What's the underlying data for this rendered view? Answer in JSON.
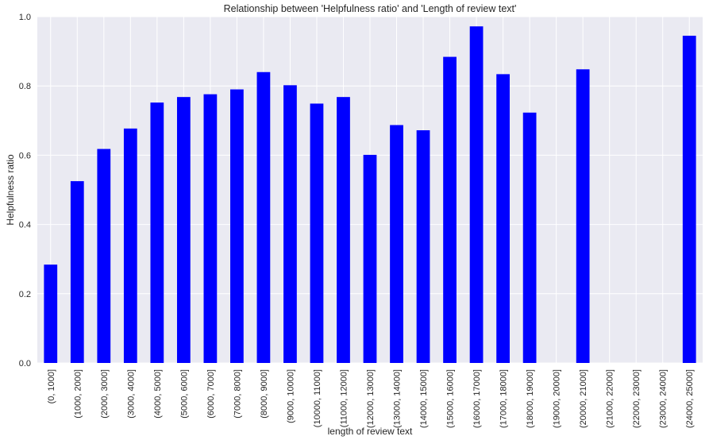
{
  "chart_data": {
    "type": "bar",
    "title": "Relationship between 'Helpfulness ratio' and 'Length of review text'",
    "xlabel": "length of review text",
    "ylabel": "Helpfulness ratio",
    "ylim": [
      0,
      1.0
    ],
    "yticks": [
      "0.0",
      "0.2",
      "0.4",
      "0.6",
      "0.8",
      "1.0"
    ],
    "grid": true,
    "bar_color": "#0000ff",
    "background_color": "#eaeaf2",
    "categories": [
      "(0, 1000]",
      "(1000, 2000]",
      "(2000, 3000]",
      "(3000, 4000]",
      "(4000, 5000]",
      "(5000, 6000]",
      "(6000, 7000]",
      "(7000, 8000]",
      "(8000, 9000]",
      "(9000, 10000]",
      "(10000, 11000]",
      "(11000, 12000]",
      "(12000, 13000]",
      "(13000, 14000]",
      "(14000, 15000]",
      "(15000, 16000]",
      "(16000, 17000]",
      "(17000, 18000]",
      "(18000, 19000]",
      "(19000, 20000]",
      "(20000, 21000]",
      "(21000, 22000]",
      "(22000, 23000]",
      "(23000, 24000]",
      "(24000, 25000]"
    ],
    "values": [
      0.284,
      0.525,
      0.618,
      0.677,
      0.752,
      0.768,
      0.776,
      0.79,
      0.84,
      0.802,
      0.749,
      0.768,
      0.601,
      0.687,
      0.672,
      0.884,
      0.972,
      0.834,
      0.723,
      null,
      0.848,
      null,
      null,
      null,
      0.945
    ]
  }
}
